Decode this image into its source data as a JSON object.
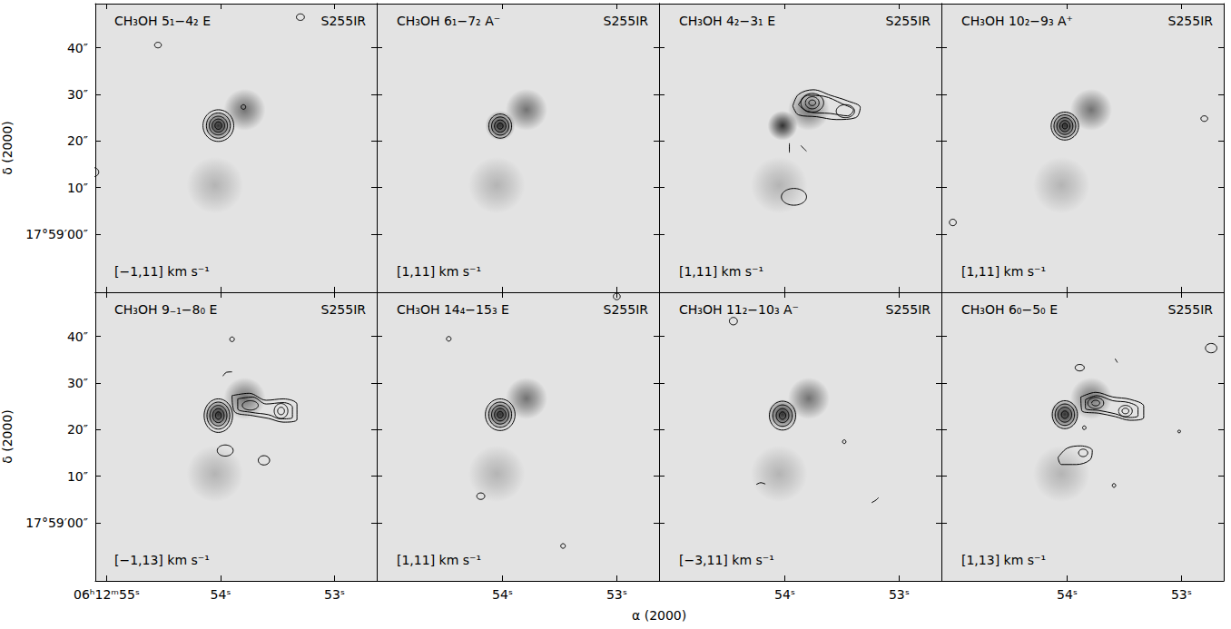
{
  "chart_data": {
    "type": "contour",
    "xlabel": "α (2000)",
    "ylabel": "δ (2000)",
    "xlim": [
      55.1,
      52.63
    ],
    "ylim": [
      -12.5,
      49.5
    ],
    "yticks": [
      {
        "value": 0,
        "label": "17°59′00″"
      },
      {
        "value": 10,
        "label": "10″"
      },
      {
        "value": 20,
        "label": "20″"
      },
      {
        "value": 30,
        "label": "30″"
      },
      {
        "value": 40,
        "label": "40″"
      }
    ],
    "continuum": [
      [
        54.02,
        23.3,
        2.0,
        0.95
      ],
      [
        53.79,
        26.7,
        2.8,
        0.6
      ],
      [
        54.05,
        10.5,
        3.8,
        0.25
      ]
    ],
    "panels": [
      {
        "title": "CH₃OH 5₁−4₂ E",
        "source": "S255IR",
        "velocity": "[−1,11] km s⁻¹",
        "tick_labels": "y",
        "xticks": [
          {
            "value": 55,
            "label": "06ʰ12ᵐ55ˢ"
          },
          {
            "value": 54,
            "label": "54ˢ"
          },
          {
            "value": 53,
            "label": "53ˢ"
          }
        ],
        "ellipses": [
          [
            54.02,
            23.3,
            0.135,
            3.4
          ],
          [
            54.02,
            23.3,
            0.105,
            2.7
          ],
          [
            54.02,
            23.3,
            0.08,
            2.0
          ],
          [
            54.02,
            23.3,
            0.055,
            1.4
          ],
          [
            54.02,
            23.3,
            0.03,
            0.8
          ],
          [
            53.8,
            27.3,
            0.02,
            0.5
          ],
          [
            54.55,
            40.6,
            0.03,
            0.6
          ],
          [
            53.3,
            46.6,
            0.035,
            0.7
          ],
          [
            55.12,
            13.3,
            0.05,
            1.0
          ]
        ],
        "contours": [],
        "arcs": []
      },
      {
        "title": "CH₃OH 6₁−7₂ A⁻",
        "source": "S255IR",
        "velocity": "[1,11] km s⁻¹",
        "tick_labels": false,
        "xticks": [
          {
            "value": 54,
            "label": "54ˢ"
          },
          {
            "value": 53,
            "label": "53ˢ"
          }
        ],
        "ellipses": [
          [
            54.02,
            23.2,
            0.1,
            2.6
          ],
          [
            54.02,
            23.2,
            0.075,
            1.95
          ],
          [
            54.02,
            23.2,
            0.05,
            1.3
          ],
          [
            54.02,
            23.2,
            0.025,
            0.65
          ]
        ],
        "contours": [],
        "arcs": []
      },
      {
        "title": "CH₃OH 4₂−3₁ E",
        "source": "S255IR",
        "velocity": "[1,11] km s⁻¹",
        "tick_labels": false,
        "xticks": [
          {
            "value": 54,
            "label": "54ˢ"
          },
          {
            "value": 53,
            "label": "53ˢ"
          }
        ],
        "ellipses": [
          [
            53.76,
            28.2,
            0.1,
            2.0
          ],
          [
            53.76,
            28.2,
            0.06,
            1.3
          ],
          [
            53.76,
            28.2,
            0.03,
            0.6
          ],
          [
            53.47,
            26.4,
            0.08,
            1.4
          ],
          [
            53.92,
            8.0,
            0.11,
            1.8
          ]
        ],
        "contours": [
          [
            [
              53.93,
              27.5
            ],
            [
              53.88,
              30.0
            ],
            [
              53.75,
              31.0
            ],
            [
              53.6,
              29.8
            ],
            [
              53.45,
              28.6
            ],
            [
              53.34,
              27.2
            ],
            [
              53.38,
              25.0
            ],
            [
              53.55,
              24.6
            ],
            [
              53.72,
              25.2
            ],
            [
              53.88,
              25.6
            ]
          ],
          [
            [
              53.88,
              27.8
            ],
            [
              53.8,
              29.8
            ],
            [
              53.66,
              29.6
            ],
            [
              53.5,
              28.0
            ],
            [
              53.4,
              26.6
            ],
            [
              53.45,
              25.4
            ],
            [
              53.6,
              25.9
            ],
            [
              53.8,
              26.3
            ]
          ]
        ],
        "arcs": [
          [
            [
              53.96,
              19.5
            ],
            [
              53.96,
              17.5
            ]
          ],
          [
            [
              53.86,
              19.0
            ],
            [
              53.81,
              17.8
            ]
          ]
        ]
      },
      {
        "title": "CH₃OH 10₂−9₃ A⁺",
        "source": "S255IR",
        "velocity": "[1,11] km s⁻¹",
        "tick_labels": false,
        "xticks": [
          {
            "value": 54,
            "label": "54ˢ"
          },
          {
            "value": 53,
            "label": "53ˢ"
          }
        ],
        "ellipses": [
          [
            54.02,
            23.2,
            0.12,
            3.0
          ],
          [
            54.02,
            23.2,
            0.095,
            2.4
          ],
          [
            54.02,
            23.2,
            0.07,
            1.8
          ],
          [
            54.02,
            23.2,
            0.045,
            1.2
          ],
          [
            54.02,
            23.2,
            0.022,
            0.6
          ],
          [
            52.8,
            24.8,
            0.03,
            0.6
          ],
          [
            55.0,
            2.5,
            0.03,
            0.7
          ]
        ],
        "contours": [],
        "arcs": []
      },
      {
        "title": "CH₃OH 9₋₁−8₀ E",
        "source": "S255IR",
        "velocity": "[−1,13] km s⁻¹",
        "tick_labels": true,
        "xticks": [
          {
            "value": 55,
            "label": "06ʰ12ᵐ55ˢ"
          },
          {
            "value": 54,
            "label": "54ˢ"
          },
          {
            "value": 53,
            "label": "53ˢ"
          }
        ],
        "ellipses": [
          [
            54.02,
            23.0,
            0.125,
            3.6
          ],
          [
            54.02,
            23.0,
            0.1,
            2.9
          ],
          [
            54.02,
            23.0,
            0.075,
            2.2
          ],
          [
            54.02,
            23.0,
            0.05,
            1.5
          ],
          [
            54.02,
            23.0,
            0.025,
            0.8
          ],
          [
            53.47,
            24.0,
            0.06,
            1.6
          ],
          [
            53.47,
            24.0,
            0.03,
            0.8
          ],
          [
            53.74,
            25.2,
            0.07,
            1.0
          ],
          [
            53.9,
            39.4,
            0.02,
            0.5
          ],
          [
            53.96,
            15.5,
            0.07,
            1.2
          ],
          [
            53.62,
            13.4,
            0.05,
            1.0
          ]
        ],
        "contours": [
          [
            [
              53.9,
              27.3
            ],
            [
              53.75,
              27.8
            ],
            [
              53.6,
              26.3
            ],
            [
              53.45,
              26.6
            ],
            [
              53.33,
              25.4
            ],
            [
              53.33,
              22.2
            ],
            [
              53.45,
              21.6
            ],
            [
              53.58,
              22.4
            ],
            [
              53.72,
              23.0
            ],
            [
              53.88,
              23.9
            ]
          ],
          [
            [
              53.85,
              26.6
            ],
            [
              53.72,
              27.0
            ],
            [
              53.6,
              25.5
            ],
            [
              53.45,
              25.8
            ],
            [
              53.37,
              24.8
            ],
            [
              53.37,
              22.6
            ],
            [
              53.47,
              22.3
            ],
            [
              53.58,
              23.2
            ],
            [
              53.73,
              23.7
            ],
            [
              53.85,
              24.5
            ]
          ]
        ],
        "arcs": [
          [
            [
              53.98,
              31.5
            ],
            [
              53.95,
              32.3
            ],
            [
              53.9,
              32.4
            ]
          ]
        ]
      },
      {
        "title": "CH₃OH 14₄−15₃ E",
        "source": "S255IR",
        "velocity": "[1,11] km s⁻¹",
        "tick_labels": "x",
        "xticks": [
          {
            "value": 54,
            "label": "54ˢ"
          },
          {
            "value": 53,
            "label": "53ˢ"
          }
        ],
        "ellipses": [
          [
            54.02,
            23.2,
            0.13,
            3.4
          ],
          [
            54.02,
            23.2,
            0.1,
            2.7
          ],
          [
            54.02,
            23.2,
            0.075,
            2.0
          ],
          [
            54.02,
            23.2,
            0.05,
            1.35
          ],
          [
            54.02,
            23.2,
            0.025,
            0.7
          ],
          [
            54.47,
            39.5,
            0.02,
            0.5
          ],
          [
            54.19,
            5.7,
            0.035,
            0.7
          ],
          [
            53.47,
            -5.0,
            0.02,
            0.5
          ],
          [
            53.0,
            48.6,
            0.03,
            0.7
          ]
        ],
        "contours": [],
        "arcs": []
      },
      {
        "title": "CH₃OH 11₂−10₃ A⁻",
        "source": "S255IR",
        "velocity": "[−3,11] km s⁻¹",
        "tick_labels": "x",
        "xticks": [
          {
            "value": 54,
            "label": "54ˢ"
          },
          {
            "value": 53,
            "label": "53ˢ"
          }
        ],
        "ellipses": [
          [
            54.02,
            23.0,
            0.115,
            3.1
          ],
          [
            54.02,
            23.0,
            0.085,
            2.3
          ],
          [
            54.02,
            23.0,
            0.055,
            1.5
          ],
          [
            54.02,
            23.0,
            0.028,
            0.8
          ],
          [
            54.45,
            43.3,
            0.035,
            0.8
          ],
          [
            53.48,
            17.4,
            0.015,
            0.4
          ]
        ],
        "contours": [],
        "arcs": [
          [
            [
              54.25,
              8.2
            ],
            [
              54.21,
              8.6
            ],
            [
              54.17,
              8.3
            ]
          ],
          [
            [
              53.24,
              4.3
            ],
            [
              53.2,
              4.9
            ],
            [
              53.18,
              5.4
            ]
          ]
        ]
      },
      {
        "title": "CH₃OH 6₀−5₀ E",
        "source": "S255IR",
        "velocity": "[1,13] km s⁻¹",
        "tick_labels": "x",
        "xticks": [
          {
            "value": 54,
            "label": "54ˢ"
          },
          {
            "value": 53,
            "label": "53ˢ"
          }
        ],
        "ellipses": [
          [
            54.02,
            23.2,
            0.11,
            3.0
          ],
          [
            54.02,
            23.2,
            0.085,
            2.3
          ],
          [
            54.02,
            23.2,
            0.06,
            1.6
          ],
          [
            54.02,
            23.2,
            0.03,
            0.8
          ],
          [
            53.75,
            25.7,
            0.07,
            1.2
          ],
          [
            53.75,
            25.7,
            0.035,
            0.6
          ],
          [
            53.49,
            24.0,
            0.06,
            1.2
          ],
          [
            53.49,
            24.0,
            0.03,
            0.6
          ],
          [
            53.86,
            15.0,
            0.04,
            0.8
          ],
          [
            53.89,
            33.3,
            0.04,
            0.7
          ],
          [
            52.74,
            37.5,
            0.05,
            1.0
          ],
          [
            53.02,
            19.6,
            0.012,
            0.3
          ],
          [
            53.85,
            20.4,
            0.015,
            0.4
          ],
          [
            53.59,
            8.0,
            0.015,
            0.4
          ]
        ],
        "contours": [
          [
            [
              53.88,
              27.0
            ],
            [
              53.75,
              28.0
            ],
            [
              53.6,
              27.0
            ],
            [
              53.45,
              26.5
            ],
            [
              53.33,
              25.0
            ],
            [
              53.33,
              22.6
            ],
            [
              53.45,
              22.0
            ],
            [
              53.58,
              22.8
            ],
            [
              53.72,
              23.5
            ],
            [
              53.87,
              24.0
            ]
          ],
          [
            [
              53.84,
              26.4
            ],
            [
              53.74,
              27.3
            ],
            [
              53.6,
              26.2
            ],
            [
              53.46,
              25.8
            ],
            [
              53.38,
              24.6
            ],
            [
              53.38,
              23.0
            ],
            [
              53.47,
              22.6
            ],
            [
              53.58,
              23.4
            ],
            [
              53.72,
              24.1
            ],
            [
              53.84,
              24.6
            ]
          ],
          [
            [
              54.08,
              14.0
            ],
            [
              54.0,
              16.0
            ],
            [
              53.88,
              16.5
            ],
            [
              53.78,
              15.5
            ],
            [
              53.8,
              13.5
            ],
            [
              53.92,
              12.5
            ],
            [
              54.05,
              12.5
            ]
          ]
        ],
        "arcs": [
          [
            [
              53.58,
              35.2
            ],
            [
              53.56,
              34.4
            ]
          ]
        ]
      }
    ]
  }
}
